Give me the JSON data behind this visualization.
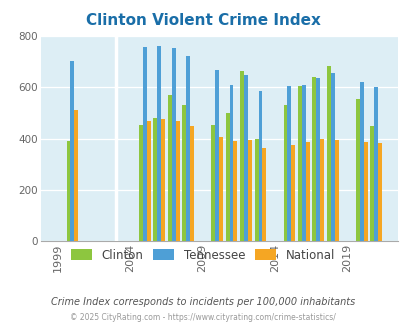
{
  "title": "Clinton Violent Crime Index",
  "title_color": "#1a6ea8",
  "subtitle": "Crime Index corresponds to incidents per 100,000 inhabitants",
  "footer": "© 2025 CityRating.com - https://www.cityrating.com/crime-statistics/",
  "years": [
    2000,
    2005,
    2006,
    2007,
    2008,
    2010,
    2011,
    2012,
    2013,
    2015,
    2016,
    2017,
    2018,
    2020,
    2021
  ],
  "xtick_labels": [
    "1999",
    "2004",
    "2009",
    "2014",
    "2019"
  ],
  "xtick_positions": [
    1999,
    2004,
    2009,
    2014,
    2019
  ],
  "clinton": [
    390,
    455,
    480,
    570,
    530,
    455,
    500,
    665,
    400,
    530,
    605,
    640,
    685,
    555,
    450
  ],
  "tennessee": [
    705,
    757,
    762,
    754,
    722,
    670,
    610,
    648,
    585,
    607,
    610,
    638,
    655,
    622,
    600
  ],
  "national": [
    510,
    468,
    478,
    470,
    450,
    405,
    390,
    395,
    365,
    375,
    385,
    400,
    395,
    385,
    382
  ],
  "clinton_color": "#8dc63f",
  "tennessee_color": "#4e9fd6",
  "national_color": "#f5a623",
  "bg_color": "#ddeef5",
  "ylim": [
    0,
    800
  ],
  "yticks": [
    0,
    200,
    400,
    600,
    800
  ],
  "bar_width": 0.27,
  "xlim": [
    1997.8,
    2022.5
  ],
  "legend_labels": [
    "Clinton",
    "Tennessee",
    "National"
  ]
}
